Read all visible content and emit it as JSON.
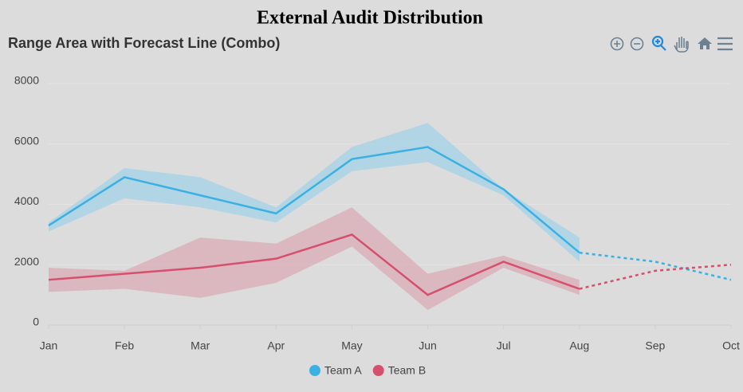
{
  "chart_data": {
    "type": "rangeArea",
    "title": "External Audit Distribution",
    "subtitle": "Range Area with Forecast Line (Combo)",
    "categories": [
      "Jan",
      "Feb",
      "Mar",
      "Apr",
      "May",
      "Jun",
      "Jul",
      "Aug",
      "Sep",
      "Oct"
    ],
    "ylim": [
      0,
      8000
    ],
    "yticks": [
      0,
      2000,
      4000,
      6000,
      8000
    ],
    "grid": true,
    "legend": "bottom",
    "series": [
      {
        "name": "Team A",
        "color": "#3bb0e3",
        "area_color": "#a9d4e6",
        "values": [
          3300,
          4900,
          4300,
          3700,
          5500,
          5900,
          4500,
          2400,
          null,
          null
        ],
        "low": [
          3100,
          4200,
          3900,
          3400,
          5100,
          5400,
          4300,
          2100,
          null,
          null
        ],
        "high": [
          3400,
          5200,
          4900,
          3900,
          5900,
          6700,
          4500,
          2900,
          null,
          null
        ],
        "forecast": [
          null,
          null,
          null,
          null,
          null,
          null,
          null,
          null,
          2100,
          1500
        ]
      },
      {
        "name": "Team B",
        "color": "#d6506d",
        "area_color": "#dbb1bb",
        "values": [
          1500,
          1700,
          1900,
          2200,
          3000,
          1000,
          2100,
          1200,
          null,
          null
        ],
        "low": [
          1100,
          1200,
          900,
          1400,
          2600,
          500,
          1900,
          1000,
          null,
          null
        ],
        "high": [
          1900,
          1800,
          2900,
          2700,
          3900,
          1700,
          2300,
          1500,
          null,
          null
        ],
        "forecast": [
          null,
          null,
          null,
          null,
          null,
          null,
          null,
          null,
          1800,
          2000
        ]
      }
    ]
  }
}
